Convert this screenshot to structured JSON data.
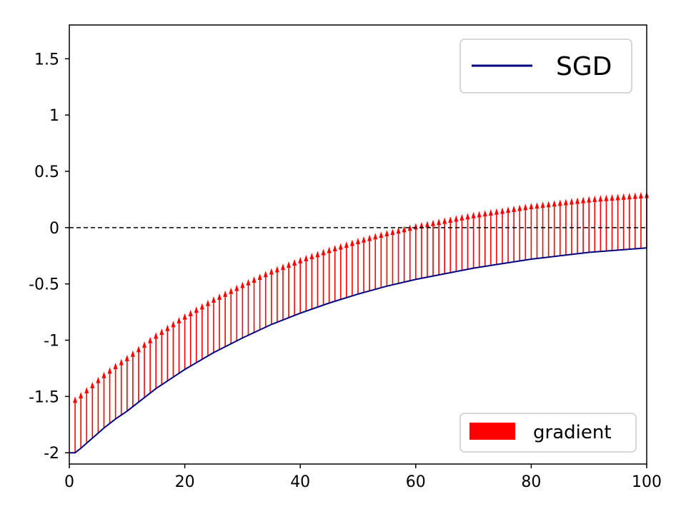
{
  "chart_data": {
    "type": "line",
    "title": "",
    "xlabel": "",
    "ylabel": "",
    "xlim": [
      0,
      100
    ],
    "ylim": [
      -2.1,
      1.8
    ],
    "xticks": [
      0,
      20,
      40,
      60,
      80,
      100
    ],
    "xtick_labels": [
      "0",
      "20",
      "40",
      "60",
      "80",
      "100"
    ],
    "yticks": [
      -2,
      -1.5,
      -1,
      -0.5,
      0,
      0.5,
      1,
      1.5
    ],
    "ytick_labels": [
      "-2",
      "-1.5",
      "-1",
      "-0.5",
      "0",
      "0.5",
      "1",
      "1.5"
    ],
    "grid": false,
    "reference_line": {
      "y": 0,
      "style": "dashed",
      "color": "#000000"
    },
    "series": [
      {
        "name": "SGD",
        "kind": "line",
        "color": "#00007f",
        "x": [
          0,
          1,
          2,
          4,
          6,
          8,
          10,
          15,
          20,
          25,
          30,
          35,
          40,
          45,
          50,
          55,
          60,
          65,
          70,
          75,
          80,
          85,
          90,
          95,
          100
        ],
        "y": [
          -2.0,
          -2.0,
          -1.96,
          -1.87,
          -1.78,
          -1.7,
          -1.63,
          -1.43,
          -1.26,
          -1.11,
          -0.98,
          -0.86,
          -0.76,
          -0.67,
          -0.59,
          -0.52,
          -0.46,
          -0.41,
          -0.36,
          -0.32,
          -0.28,
          -0.25,
          -0.22,
          -0.2,
          -0.18
        ]
      },
      {
        "name": "gradient",
        "kind": "arrows",
        "color": "#ff0000",
        "arrow_step": 1,
        "arrow_length": 0.5,
        "x_start": 1,
        "x_end": 100
      }
    ],
    "legends": [
      {
        "entries": [
          "SGD"
        ],
        "placement": "top-right"
      },
      {
        "entries": [
          "gradient"
        ],
        "placement": "bottom-right"
      }
    ]
  }
}
